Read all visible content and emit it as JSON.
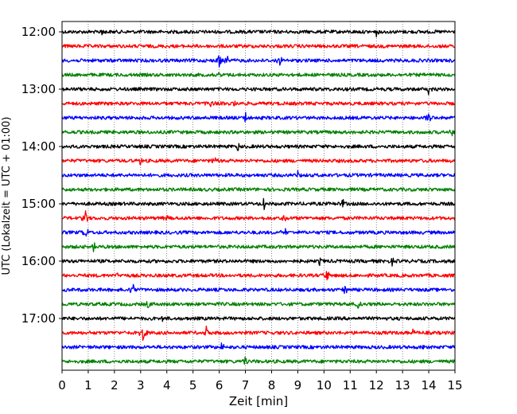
{
  "chart_data": {
    "type": "line",
    "title": "",
    "xlabel": "Zeit  [min]",
    "ylabel": "UTC (Lokalzeit = UTC + 01:00)",
    "xlim": [
      0,
      15
    ],
    "x_ticks": [
      0,
      1,
      2,
      3,
      4,
      5,
      6,
      7,
      8,
      9,
      10,
      11,
      12,
      13,
      14,
      15
    ],
    "x_tick_labels": [
      "0",
      "1",
      "2",
      "3",
      "4",
      "5",
      "6",
      "7",
      "8",
      "9",
      "10",
      "11",
      "12",
      "13",
      "14",
      "15"
    ],
    "y_tick_labels": [
      "12:00",
      "13:00",
      "14:00",
      "15:00",
      "16:00",
      "17:00"
    ],
    "grid_x": true,
    "trace_interval_minutes": 15,
    "start_time": "12:00",
    "trace_colors": [
      "#000000",
      "#ff0000",
      "#0000ff",
      "#008000"
    ],
    "traces": [
      {
        "start": "12:00",
        "color": "#000000",
        "events": [
          {
            "x": 1.5,
            "amp": 0.35
          },
          {
            "x": 12.0,
            "amp": 0.3
          }
        ]
      },
      {
        "start": "12:15",
        "color": "#ff0000",
        "events": []
      },
      {
        "start": "12:30",
        "color": "#0000ff",
        "events": [
          {
            "x": 6.0,
            "amp": 0.6
          },
          {
            "x": 6.3,
            "amp": 0.45
          },
          {
            "x": 8.3,
            "amp": 0.45
          }
        ]
      },
      {
        "start": "12:45",
        "color": "#008000",
        "events": [
          {
            "x": 6.0,
            "amp": 0.3
          }
        ]
      },
      {
        "start": "13:00",
        "color": "#000000",
        "events": [
          {
            "x": 14.0,
            "amp": 0.5
          }
        ]
      },
      {
        "start": "13:15",
        "color": "#ff0000",
        "events": [
          {
            "x": 5.7,
            "amp": 0.3
          },
          {
            "x": 6.6,
            "amp": 0.25
          }
        ]
      },
      {
        "start": "13:30",
        "color": "#0000ff",
        "events": [
          {
            "x": 7.0,
            "amp": 0.45
          },
          {
            "x": 14.0,
            "amp": 0.35
          }
        ]
      },
      {
        "start": "13:45",
        "color": "#008000",
        "events": [
          {
            "x": 14.9,
            "amp": 0.35
          }
        ]
      },
      {
        "start": "14:00",
        "color": "#000000",
        "events": [
          {
            "x": 6.7,
            "amp": 0.35
          }
        ]
      },
      {
        "start": "14:15",
        "color": "#ff0000",
        "events": [
          {
            "x": 3.0,
            "amp": 0.4
          },
          {
            "x": 5.8,
            "amp": 0.3
          }
        ]
      },
      {
        "start": "14:30",
        "color": "#0000ff",
        "events": [
          {
            "x": 9.0,
            "amp": 0.4
          }
        ]
      },
      {
        "start": "14:45",
        "color": "#008000",
        "events": []
      },
      {
        "start": "15:00",
        "color": "#000000",
        "events": [
          {
            "x": 7.7,
            "amp": 0.55
          },
          {
            "x": 10.7,
            "amp": 0.45
          }
        ]
      },
      {
        "start": "15:15",
        "color": "#ff0000",
        "events": [
          {
            "x": 0.9,
            "amp": 0.55
          },
          {
            "x": 4.0,
            "amp": 0.3
          },
          {
            "x": 8.5,
            "amp": 0.3
          }
        ]
      },
      {
        "start": "15:30",
        "color": "#0000ff",
        "events": [
          {
            "x": 0.9,
            "amp": 0.55
          },
          {
            "x": 8.5,
            "amp": 0.4
          }
        ]
      },
      {
        "start": "15:45",
        "color": "#008000",
        "events": [
          {
            "x": 1.2,
            "amp": 0.4
          }
        ]
      },
      {
        "start": "16:00",
        "color": "#000000",
        "events": [
          {
            "x": 9.8,
            "amp": 0.45
          },
          {
            "x": 12.6,
            "amp": 0.3
          }
        ]
      },
      {
        "start": "16:15",
        "color": "#ff0000",
        "events": [
          {
            "x": 2.1,
            "amp": 0.3
          },
          {
            "x": 10.1,
            "amp": 0.6
          }
        ]
      },
      {
        "start": "16:30",
        "color": "#0000ff",
        "events": [
          {
            "x": 2.7,
            "amp": 0.55
          },
          {
            "x": 10.8,
            "amp": 0.4
          }
        ]
      },
      {
        "start": "16:45",
        "color": "#008000",
        "events": [
          {
            "x": 3.3,
            "amp": 0.3
          },
          {
            "x": 11.3,
            "amp": 0.35
          }
        ]
      },
      {
        "start": "17:00",
        "color": "#000000",
        "events": [
          {
            "x": 3.8,
            "amp": 0.3
          }
        ]
      },
      {
        "start": "17:15",
        "color": "#ff0000",
        "events": [
          {
            "x": 3.1,
            "amp": 0.9
          },
          {
            "x": 5.5,
            "amp": 0.5
          },
          {
            "x": 13.4,
            "amp": 0.3
          }
        ]
      },
      {
        "start": "17:30",
        "color": "#0000ff",
        "events": [
          {
            "x": 6.1,
            "amp": 0.35
          },
          {
            "x": 13.8,
            "amp": 0.45
          }
        ]
      },
      {
        "start": "17:45",
        "color": "#008000",
        "events": [
          {
            "x": 7.0,
            "amp": 0.5
          }
        ]
      }
    ]
  }
}
